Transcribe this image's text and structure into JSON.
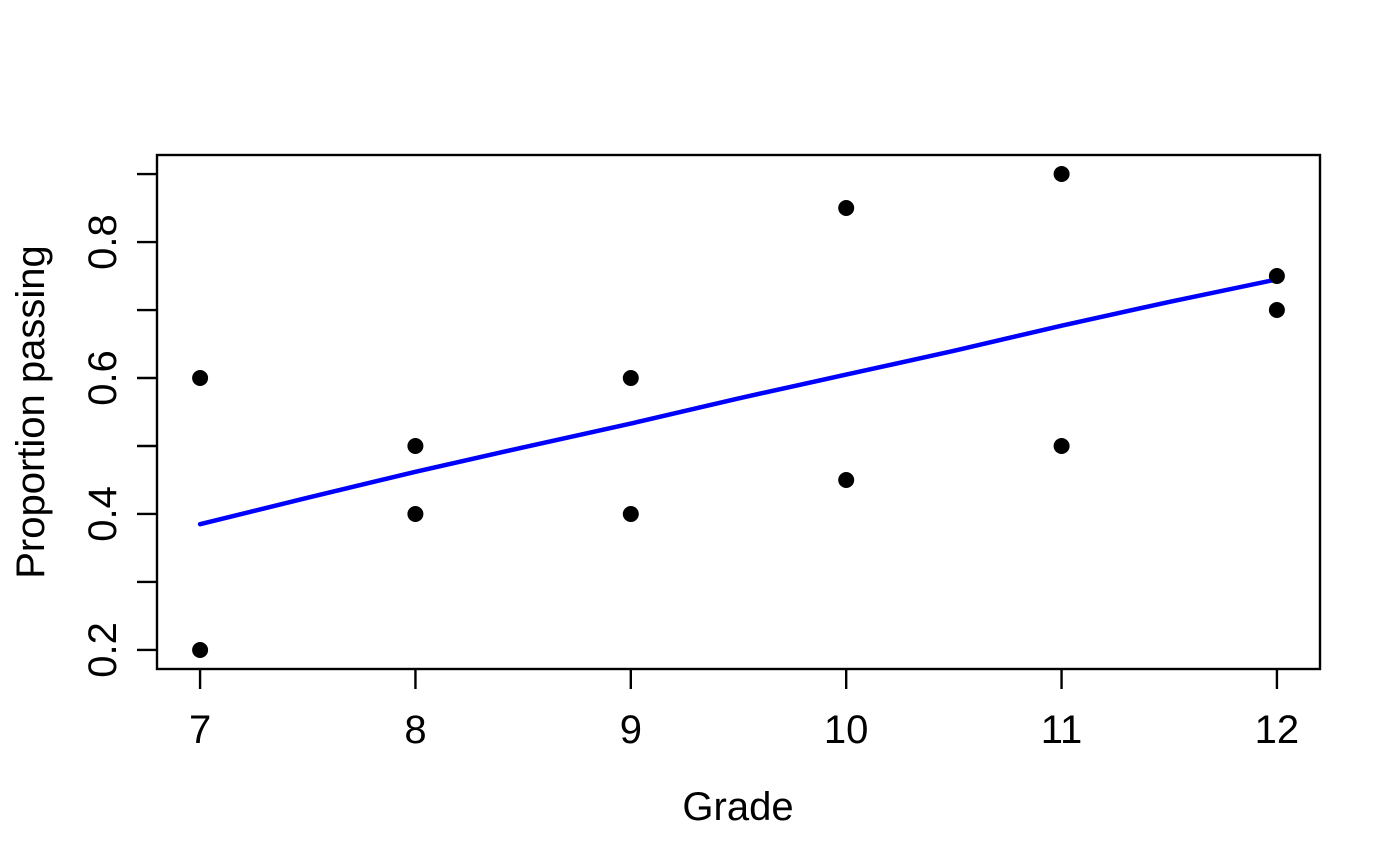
{
  "figure": {
    "background": "#ffffff",
    "title": ""
  },
  "chart_data": {
    "type": "scatter",
    "title": "",
    "xlabel": "Grade",
    "ylabel": "Proportion passing",
    "xlim": [
      6.8,
      12.2
    ],
    "ylim": [
      0.172,
      0.928
    ],
    "grid": false,
    "legend": null,
    "x_ticks": [
      7,
      8,
      9,
      10,
      11,
      12
    ],
    "x_tick_labels": [
      "7",
      "8",
      "9",
      "10",
      "11",
      "12"
    ],
    "y_ticks": [
      0.2,
      0.3,
      0.4,
      0.5,
      0.6,
      0.7,
      0.8,
      0.9
    ],
    "y_tick_labels": [
      "0.2",
      "",
      "0.4",
      "",
      "0.6",
      "",
      "0.8",
      ""
    ],
    "points": [
      {
        "x": 7,
        "y": 0.2
      },
      {
        "x": 7,
        "y": 0.6
      },
      {
        "x": 8,
        "y": 0.4
      },
      {
        "x": 8,
        "y": 0.5
      },
      {
        "x": 9,
        "y": 0.4
      },
      {
        "x": 9,
        "y": 0.6
      },
      {
        "x": 10,
        "y": 0.45
      },
      {
        "x": 10,
        "y": 0.85
      },
      {
        "x": 11,
        "y": 0.5
      },
      {
        "x": 11,
        "y": 0.9
      },
      {
        "x": 12,
        "y": 0.7
      },
      {
        "x": 12,
        "y": 0.75
      }
    ],
    "fit_curve": {
      "description": "fitted trend (logistic-style) curve",
      "x": [
        7,
        7.5,
        8,
        8.5,
        9,
        9.5,
        10,
        10.5,
        11,
        11.5,
        12
      ],
      "y": [
        0.385,
        0.424,
        0.462,
        0.498,
        0.533,
        0.57,
        0.605,
        0.64,
        0.677,
        0.712,
        0.745
      ]
    },
    "colors": {
      "point": "#000000",
      "curve": "#0000ff",
      "axis": "#000000",
      "text": "#000000",
      "background": "#ffffff"
    }
  }
}
